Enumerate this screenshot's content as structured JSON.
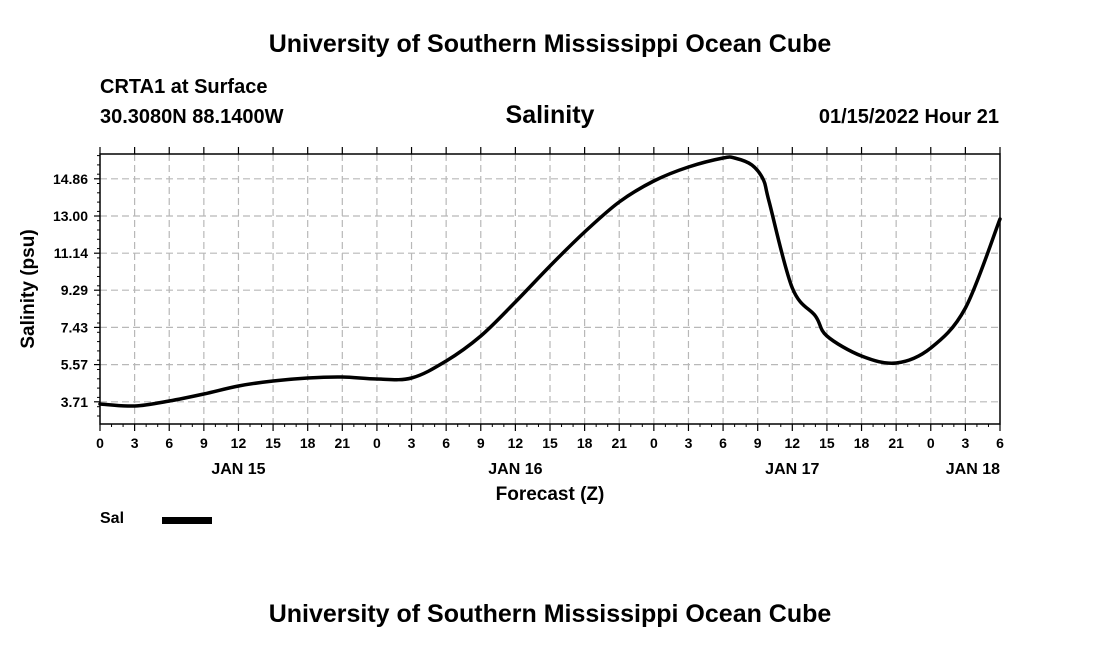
{
  "header": {
    "title": "University of Southern Mississippi Ocean Cube",
    "station": "CRTA1 at Surface",
    "coordinates": "30.3080N  88.1400W",
    "datetime": "01/15/2022 Hour 21"
  },
  "footer": {
    "title": "University of Southern Mississippi Ocean Cube"
  },
  "legend": {
    "label": "Sal",
    "color": "#000000"
  },
  "chart_data": {
    "type": "line",
    "title": "Salinity",
    "xlabel": "Forecast (Z)",
    "ylabel": "Salinity (psu)",
    "grid": true,
    "xlim": [
      0,
      78
    ],
    "ylim": [
      2.6,
      16.1
    ],
    "yticks": [
      "3.71",
      "5.57",
      "7.43",
      "9.29",
      "11.14",
      "13.00",
      "14.86"
    ],
    "xtick_labels": [
      "0",
      "3",
      "6",
      "9",
      "12",
      "15",
      "18",
      "21",
      "0",
      "3",
      "6",
      "9",
      "12",
      "15",
      "18",
      "21",
      "0",
      "3",
      "6",
      "9",
      "12",
      "15",
      "18",
      "21",
      "0",
      "3",
      "6"
    ],
    "day_labels": [
      {
        "label": "JAN 15",
        "hour": 12
      },
      {
        "label": "JAN 16",
        "hour": 36
      },
      {
        "label": "JAN 17",
        "hour": 60
      },
      {
        "label": "JAN 18",
        "hour": 78
      }
    ],
    "series": [
      {
        "name": "Sal",
        "color": "#000000",
        "x": [
          0,
          3,
          6,
          9,
          12,
          15,
          18,
          21,
          24,
          27,
          30,
          33,
          36,
          39,
          42,
          45,
          48,
          51,
          54,
          55,
          56.5,
          57.5,
          58,
          60,
          62,
          63,
          66,
          69,
          72,
          75,
          78
        ],
        "y": [
          3.6,
          3.5,
          3.75,
          4.1,
          4.5,
          4.75,
          4.9,
          4.95,
          4.85,
          4.9,
          5.75,
          7.0,
          8.7,
          10.5,
          12.2,
          13.7,
          14.75,
          15.45,
          15.9,
          15.9,
          15.55,
          14.8,
          13.7,
          9.4,
          8.0,
          7.0,
          6.0,
          5.65,
          6.4,
          8.4,
          12.85
        ]
      }
    ]
  }
}
